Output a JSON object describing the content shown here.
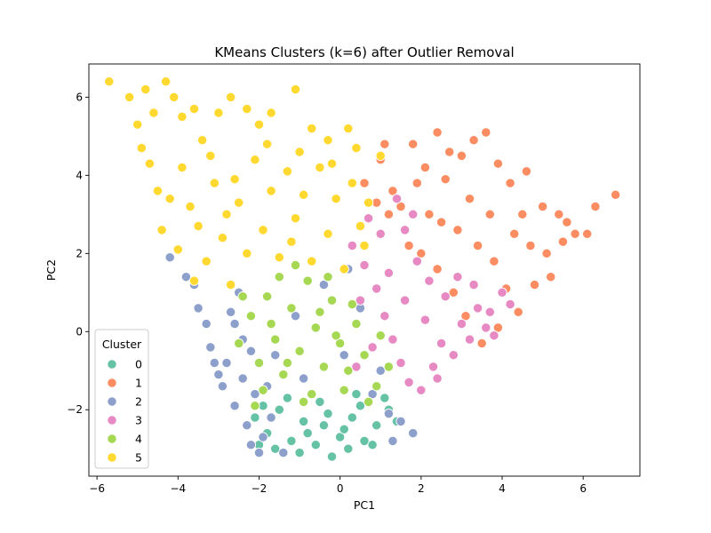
{
  "chart_data": {
    "type": "scatter",
    "title": "KMeans Clusters (k=6) after Outlier Removal",
    "xlabel": "PC1",
    "ylabel": "PC2",
    "xlim": [
      -6.2,
      7.4
    ],
    "ylim": [
      -3.7,
      6.85
    ],
    "xticks": [
      -6,
      -4,
      -2,
      0,
      2,
      4,
      6
    ],
    "yticks": [
      -2,
      0,
      2,
      4,
      6
    ],
    "grid": false,
    "legend": {
      "title": "Cluster",
      "placement": "lower-left"
    },
    "series": [
      {
        "name": "0",
        "color": "#66c2a5",
        "points": [
          [
            -2.1,
            -2.2
          ],
          [
            -1.8,
            -2.6
          ],
          [
            -1.5,
            -2.0
          ],
          [
            -1.2,
            -2.8
          ],
          [
            -0.9,
            -2.3
          ],
          [
            -0.6,
            -2.9
          ],
          [
            -0.3,
            -2.1
          ],
          [
            0.0,
            -2.7
          ],
          [
            0.3,
            -2.2
          ],
          [
            0.6,
            -2.8
          ],
          [
            0.9,
            -2.4
          ],
          [
            1.2,
            -2.0
          ],
          [
            -1.6,
            -3.0
          ],
          [
            -1.0,
            -3.1
          ],
          [
            -0.2,
            -3.2
          ],
          [
            0.2,
            -3.0
          ],
          [
            0.8,
            -2.9
          ],
          [
            -0.5,
            -1.8
          ],
          [
            0.5,
            -1.9
          ],
          [
            1.1,
            -1.7
          ],
          [
            -1.3,
            -1.7
          ],
          [
            -2.0,
            -2.9
          ],
          [
            -0.8,
            -2.6
          ],
          [
            0.1,
            -2.5
          ],
          [
            0.4,
            -1.6
          ],
          [
            -0.4,
            -2.4
          ],
          [
            1.4,
            -2.3
          ],
          [
            -1.9,
            -1.9
          ]
        ]
      },
      {
        "name": "1",
        "color": "#fc8d62",
        "points": [
          [
            0.6,
            3.8
          ],
          [
            1.0,
            4.4
          ],
          [
            1.3,
            3.6
          ],
          [
            1.8,
            4.8
          ],
          [
            2.1,
            4.2
          ],
          [
            2.4,
            5.1
          ],
          [
            2.6,
            3.9
          ],
          [
            3.0,
            4.5
          ],
          [
            3.3,
            4.9
          ],
          [
            3.6,
            5.1
          ],
          [
            3.9,
            4.3
          ],
          [
            4.2,
            3.8
          ],
          [
            4.6,
            4.1
          ],
          [
            5.0,
            3.2
          ],
          [
            5.4,
            3.0
          ],
          [
            5.8,
            2.5
          ],
          [
            6.1,
            2.5
          ],
          [
            6.3,
            3.2
          ],
          [
            6.8,
            3.5
          ],
          [
            5.6,
            2.8
          ],
          [
            5.2,
            1.4
          ],
          [
            4.8,
            1.2
          ],
          [
            4.4,
            0.5
          ],
          [
            3.9,
            0.1
          ],
          [
            3.5,
            -0.3
          ],
          [
            3.1,
            0.4
          ],
          [
            2.8,
            1.0
          ],
          [
            2.4,
            1.6
          ],
          [
            2.0,
            2.0
          ],
          [
            1.6,
            2.6
          ],
          [
            1.2,
            3.0
          ],
          [
            0.9,
            3.3
          ],
          [
            1.5,
            3.2
          ],
          [
            2.2,
            3.0
          ],
          [
            2.9,
            2.6
          ],
          [
            3.4,
            2.2
          ],
          [
            3.8,
            1.8
          ],
          [
            4.3,
            2.5
          ],
          [
            4.7,
            2.2
          ],
          [
            5.1,
            2.0
          ],
          [
            3.2,
            3.4
          ],
          [
            2.5,
            2.8
          ],
          [
            1.9,
            3.8
          ],
          [
            3.7,
            3.0
          ],
          [
            4.5,
            3.0
          ],
          [
            1.1,
            4.8
          ],
          [
            1.7,
            2.2
          ],
          [
            2.7,
            4.6
          ],
          [
            4.1,
            1.1
          ],
          [
            5.5,
            2.3
          ]
        ]
      },
      {
        "name": "2",
        "color": "#8da0cb",
        "points": [
          [
            -4.2,
            1.9
          ],
          [
            -3.8,
            1.4
          ],
          [
            -3.5,
            0.6
          ],
          [
            -3.2,
            -0.4
          ],
          [
            -3.0,
            -1.1
          ],
          [
            -2.8,
            -0.8
          ],
          [
            -2.6,
            -1.9
          ],
          [
            -2.4,
            -0.2
          ],
          [
            -2.3,
            -2.4
          ],
          [
            -2.2,
            -2.9
          ],
          [
            -2.0,
            -3.1
          ],
          [
            -1.8,
            -1.4
          ],
          [
            -1.6,
            -0.6
          ],
          [
            -2.7,
            0.5
          ],
          [
            -2.5,
            1.0
          ],
          [
            -2.9,
            -1.4
          ],
          [
            -2.1,
            -1.6
          ],
          [
            -1.9,
            -2.7
          ],
          [
            -1.4,
            -3.1
          ],
          [
            -0.9,
            -1.2
          ],
          [
            0.2,
            1.6
          ],
          [
            0.5,
            0.6
          ],
          [
            0.8,
            -1.6
          ],
          [
            1.2,
            -2.1
          ],
          [
            1.5,
            -2.3
          ],
          [
            1.8,
            -2.6
          ],
          [
            -3.6,
            1.2
          ],
          [
            -3.3,
            0.2
          ],
          [
            -2.6,
            0.2
          ],
          [
            -2.2,
            -0.5
          ],
          [
            -1.7,
            -2.2
          ],
          [
            -1.1,
            0.4
          ],
          [
            -0.4,
            1.2
          ],
          [
            0.1,
            -0.6
          ],
          [
            1.0,
            -1.0
          ],
          [
            1.3,
            -2.8
          ],
          [
            -3.1,
            -0.8
          ],
          [
            -2.4,
            -1.2
          ]
        ]
      },
      {
        "name": "3",
        "color": "#e78ac3",
        "points": [
          [
            0.3,
            2.2
          ],
          [
            0.6,
            1.7
          ],
          [
            0.9,
            1.1
          ],
          [
            1.1,
            0.4
          ],
          [
            1.3,
            -0.2
          ],
          [
            1.5,
            -0.8
          ],
          [
            1.7,
            -1.3
          ],
          [
            2.0,
            -1.5
          ],
          [
            2.3,
            -0.9
          ],
          [
            2.5,
            -0.3
          ],
          [
            2.8,
            -0.6
          ],
          [
            3.0,
            0.2
          ],
          [
            3.2,
            -0.2
          ],
          [
            3.4,
            0.6
          ],
          [
            3.6,
            0.1
          ],
          [
            3.8,
            -0.1
          ],
          [
            4.2,
            0.7
          ],
          [
            4.0,
            1.0
          ],
          [
            1.9,
            1.8
          ],
          [
            1.6,
            2.6
          ],
          [
            1.4,
            3.4
          ],
          [
            1.8,
            3.0
          ],
          [
            2.2,
            1.3
          ],
          [
            2.6,
            0.9
          ],
          [
            0.5,
            0.8
          ],
          [
            0.8,
            -0.4
          ],
          [
            1.0,
            2.5
          ],
          [
            2.1,
            0.3
          ],
          [
            2.9,
            1.4
          ],
          [
            3.3,
            1.2
          ],
          [
            1.2,
            1.5
          ],
          [
            0.4,
            -0.9
          ],
          [
            1.6,
            0.8
          ],
          [
            2.4,
            -1.2
          ],
          [
            0.7,
            2.9
          ],
          [
            3.7,
            0.5
          ]
        ]
      },
      {
        "name": "4",
        "color": "#a6d854",
        "points": [
          [
            -2.5,
            -0.3
          ],
          [
            -2.2,
            0.4
          ],
          [
            -2.0,
            -0.8
          ],
          [
            -1.8,
            0.9
          ],
          [
            -1.6,
            -0.2
          ],
          [
            -1.4,
            -1.1
          ],
          [
            -1.2,
            0.6
          ],
          [
            -1.0,
            -0.5
          ],
          [
            -0.8,
            1.3
          ],
          [
            -0.6,
            0.1
          ],
          [
            -0.4,
            -0.9
          ],
          [
            -0.2,
            0.8
          ],
          [
            0.0,
            -0.3
          ],
          [
            0.2,
            -1.0
          ],
          [
            0.4,
            0.2
          ],
          [
            0.6,
            -0.6
          ],
          [
            0.9,
            -1.4
          ],
          [
            -1.9,
            -1.5
          ],
          [
            -2.1,
            -1.9
          ],
          [
            -1.5,
            1.4
          ],
          [
            -1.1,
            1.7
          ],
          [
            -0.7,
            -1.6
          ],
          [
            -0.3,
            1.4
          ],
          [
            0.1,
            -1.5
          ],
          [
            1.0,
            -0.1
          ],
          [
            1.2,
            -0.9
          ],
          [
            -2.4,
            0.9
          ],
          [
            -1.3,
            -0.8
          ],
          [
            -0.5,
            0.5
          ],
          [
            0.3,
            0.7
          ],
          [
            -0.9,
            -1.8
          ],
          [
            -1.7,
            0.2
          ],
          [
            0.7,
            -1.8
          ],
          [
            -0.1,
            -0.1
          ]
        ]
      },
      {
        "name": "5",
        "color": "#ffd92f",
        "points": [
          [
            -5.7,
            6.4
          ],
          [
            -5.2,
            6.0
          ],
          [
            -5.0,
            5.3
          ],
          [
            -4.8,
            6.2
          ],
          [
            -4.6,
            5.6
          ],
          [
            -4.3,
            6.4
          ],
          [
            -4.1,
            6.0
          ],
          [
            -3.9,
            5.5
          ],
          [
            -3.6,
            5.7
          ],
          [
            -3.4,
            4.9
          ],
          [
            -3.0,
            5.6
          ],
          [
            -2.7,
            6.0
          ],
          [
            -2.3,
            5.7
          ],
          [
            -2.0,
            5.3
          ],
          [
            -1.7,
            5.6
          ],
          [
            -1.1,
            6.2
          ],
          [
            -0.7,
            5.2
          ],
          [
            -0.3,
            4.9
          ],
          [
            0.2,
            5.2
          ],
          [
            0.4,
            4.7
          ],
          [
            1.0,
            4.5
          ],
          [
            -4.9,
            4.7
          ],
          [
            -4.7,
            4.3
          ],
          [
            -4.5,
            3.6
          ],
          [
            -4.4,
            2.6
          ],
          [
            -4.0,
            2.1
          ],
          [
            -3.7,
            3.2
          ],
          [
            -3.5,
            2.7
          ],
          [
            -3.3,
            1.8
          ],
          [
            -3.1,
            3.8
          ],
          [
            -2.9,
            2.4
          ],
          [
            -2.7,
            1.2
          ],
          [
            -2.5,
            3.3
          ],
          [
            -2.3,
            2.0
          ],
          [
            -2.1,
            4.4
          ],
          [
            -1.9,
            2.6
          ],
          [
            -1.7,
            3.6
          ],
          [
            -1.5,
            1.9
          ],
          [
            -1.3,
            4.1
          ],
          [
            -1.1,
            2.9
          ],
          [
            -0.9,
            3.5
          ],
          [
            -0.7,
            1.8
          ],
          [
            -0.5,
            4.2
          ],
          [
            -0.3,
            2.5
          ],
          [
            -0.1,
            3.4
          ],
          [
            0.1,
            1.6
          ],
          [
            0.3,
            3.8
          ],
          [
            0.5,
            2.7
          ],
          [
            0.7,
            3.3
          ],
          [
            -3.9,
            4.2
          ],
          [
            -3.2,
            4.5
          ],
          [
            -2.6,
            3.9
          ],
          [
            -1.8,
            4.8
          ],
          [
            -1.0,
            4.6
          ],
          [
            -0.2,
            4.3
          ],
          [
            -4.2,
            3.4
          ],
          [
            -3.6,
            1.3
          ],
          [
            -2.8,
            3.0
          ],
          [
            -1.2,
            2.3
          ],
          [
            0.6,
            2.2
          ]
        ]
      }
    ]
  }
}
